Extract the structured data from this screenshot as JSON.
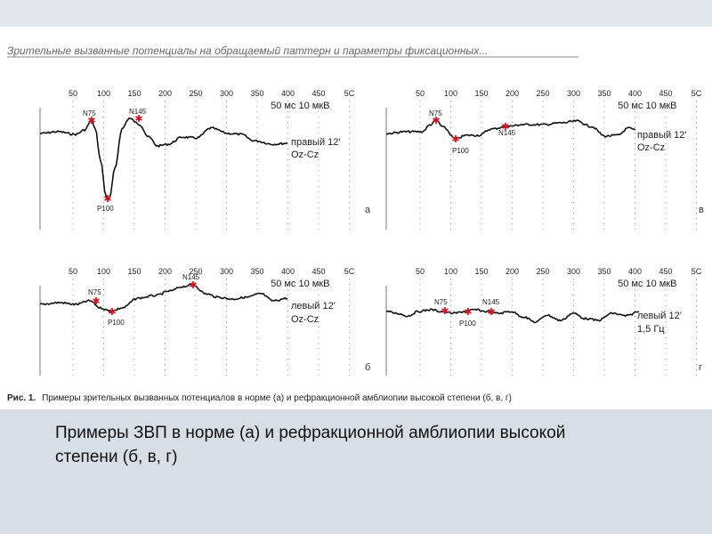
{
  "figure": {
    "header": "Зрительные вызванные потенциалы на обращаемый паттерн и параметры фиксационных...",
    "caption_bold": "Рис. 1.",
    "caption_text": "Примеры зрительных вызванных потенциалов в норме (а) и рефракционной амблиопии высокой степени (б, в, г)",
    "tick_labels": [
      "50",
      "100",
      "150",
      "200",
      "250",
      "300",
      "350",
      "400",
      "450",
      "5C"
    ],
    "panels": [
      {
        "id": "a",
        "letter": "а",
        "scale": "50 мс 10 мкВ",
        "label1": "правый 12'",
        "label2": "Oz-Cz",
        "peaks": [
          {
            "name": "N75"
          },
          {
            "name": "P100"
          },
          {
            "name": "N145"
          }
        ]
      },
      {
        "id": "v",
        "letter": "в",
        "scale": "50 мс 10 мкВ",
        "label1": "правый 12'",
        "label2": "Oz-Cz",
        "peaks": [
          {
            "name": "N75"
          },
          {
            "name": "P100"
          },
          {
            "name": "N145"
          }
        ]
      },
      {
        "id": "b",
        "letter": "б",
        "scale": "50 мс 10 мкВ",
        "label1": "левый 12'",
        "label2": "Oz-Cz",
        "peaks": [
          {
            "name": "N75"
          },
          {
            "name": "P100"
          },
          {
            "name": "N145"
          }
        ]
      },
      {
        "id": "g",
        "letter": "г",
        "scale": "50 мс 10 мкВ",
        "label1": "левый 12'",
        "label2": "1,5 Гц",
        "peaks": [
          {
            "name": "N75"
          },
          {
            "name": "P100"
          },
          {
            "name": "N145"
          }
        ]
      }
    ]
  },
  "slide_caption": "Примеры ЗВП в норме (а) и рефракционной амблиопии высокой степени (б, в, г)"
}
